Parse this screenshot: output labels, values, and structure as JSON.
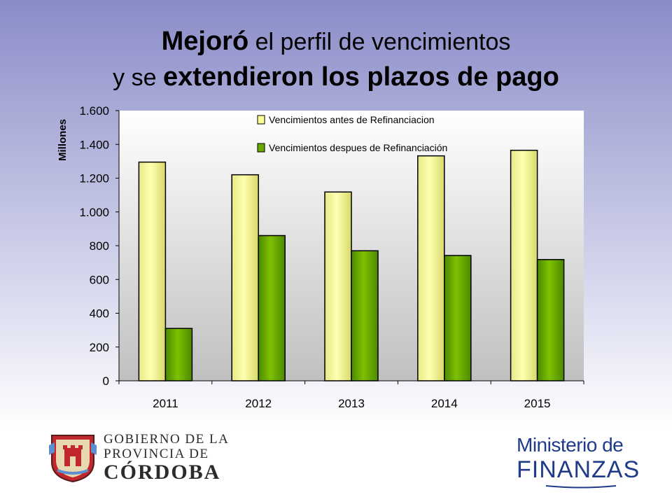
{
  "title": {
    "line1_bold": "Mejoró",
    "line1_rest": " el perfil de vencimientos",
    "line2_start": "y se ",
    "line2_bold": "extendieron los plazos de pago"
  },
  "chart_data": {
    "type": "bar",
    "categories": [
      "2011",
      "2012",
      "2013",
      "2014",
      "2015"
    ],
    "series": [
      {
        "name": "Vencimientos antes de Refinanciacion",
        "values": [
          1295,
          1220,
          1118,
          1332,
          1365
        ],
        "color": "#ffff99"
      },
      {
        "name": "Vencimientos despues de Refinanciación",
        "values": [
          310,
          860,
          770,
          742,
          718
        ],
        "color": "#66aa00"
      }
    ],
    "ylabel": "Millones",
    "ylim": [
      0,
      1600
    ],
    "yticks": [
      0,
      200,
      400,
      600,
      800,
      1000,
      1200,
      1400,
      1600
    ],
    "ytick_labels": [
      "0",
      "200",
      "400",
      "600",
      "800",
      "1.000",
      "1.200",
      "1.400",
      "1.600"
    ],
    "legend_position": "top",
    "grid": false
  },
  "footer": {
    "left_logo": {
      "line1": "GOBIERNO DE LA",
      "line2": "PROVINCIA DE",
      "line3": "CÓRDOBA"
    },
    "right_logo": {
      "line1": "Ministerio de",
      "line2": "FINANZAS"
    }
  },
  "colors": {
    "plot_bg_top": "#ffffff",
    "plot_bg_bottom": "#c0c0c0",
    "ministerio_blue": "#1f3b8a"
  }
}
